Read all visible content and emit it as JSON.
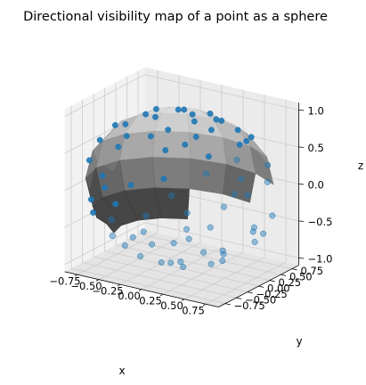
{
  "chart_data": {
    "type": "scatter",
    "subtype": "3d-surface-with-scatter",
    "title": "Directional visibility map of a point as a sphere",
    "xlabel": "x",
    "ylabel": "y",
    "zlabel": "z",
    "x_ticks": [
      "−0.75",
      "−0.50",
      "−0.25",
      "0.00",
      "0.25",
      "0.50",
      "0.75"
    ],
    "y_ticks": [
      "−0.75",
      "−0.50",
      "−0.25",
      "0.00",
      "0.25",
      "0.50",
      "0.75"
    ],
    "z_ticks": [
      "−1.0",
      "−0.5",
      "0.0",
      "0.5",
      "1.0"
    ],
    "xlim": [
      -0.9,
      0.9
    ],
    "ylim": [
      -0.9,
      0.9
    ],
    "zlim": [
      -1.1,
      1.1
    ],
    "grid": true,
    "surface": {
      "shape": "unit sphere",
      "lat_bands": 8,
      "lon_segments": 16,
      "shading": "grey"
    },
    "marker_color": "#1f77b4",
    "series": [
      {
        "points": [
          [
            0.1,
            0.05,
            0.99
          ],
          [
            0.2,
            -0.1,
            0.97
          ],
          [
            -0.05,
            0.15,
            0.98
          ],
          [
            0.3,
            0.2,
            0.93
          ],
          [
            -0.2,
            -0.2,
            0.95
          ],
          [
            0.15,
            0.35,
            0.92
          ],
          [
            0.4,
            -0.1,
            0.91
          ],
          [
            -0.35,
            0.1,
            0.93
          ],
          [
            0.05,
            -0.4,
            0.91
          ],
          [
            0.5,
            0.3,
            0.81
          ],
          [
            0.3,
            -0.5,
            0.81
          ],
          [
            -0.5,
            -0.3,
            0.81
          ],
          [
            -0.3,
            0.5,
            0.81
          ],
          [
            0.55,
            -0.45,
            0.7
          ],
          [
            0.65,
            0.2,
            0.73
          ],
          [
            -0.6,
            0.35,
            0.71
          ],
          [
            0.1,
            0.7,
            0.7
          ],
          [
            0.15,
            -0.65,
            0.74
          ],
          [
            -0.7,
            -0.15,
            0.7
          ],
          [
            0.75,
            -0.2,
            0.63
          ],
          [
            0.5,
            0.6,
            0.62
          ],
          [
            -0.4,
            -0.65,
            0.64
          ],
          [
            0.85,
            0.3,
            0.43
          ],
          [
            0.6,
            -0.6,
            0.53
          ],
          [
            0.85,
            -0.45,
            0.27
          ],
          [
            0.95,
            0.1,
            0.29
          ],
          [
            0.35,
            -0.9,
            0.26
          ],
          [
            -0.1,
            -0.95,
            0.3
          ],
          [
            -0.5,
            -0.82,
            0.28
          ],
          [
            0.7,
            -0.7,
            -0.14
          ],
          [
            0.95,
            -0.2,
            -0.23
          ],
          [
            0.5,
            -0.85,
            -0.17
          ],
          [
            0.1,
            -0.99,
            -0.05
          ],
          [
            -0.35,
            -0.9,
            -0.25
          ],
          [
            0.8,
            0.5,
            -0.33
          ],
          [
            0.9,
            0.1,
            -0.42
          ],
          [
            -0.75,
            -0.55,
            -0.37
          ],
          [
            0.35,
            -0.85,
            -0.4
          ],
          [
            -0.1,
            -0.9,
            -0.42
          ],
          [
            0.7,
            -0.4,
            -0.6
          ],
          [
            0.3,
            -0.6,
            -0.74
          ],
          [
            -0.3,
            -0.7,
            -0.65
          ],
          [
            0.7,
            0.3,
            -0.65
          ],
          [
            -0.6,
            -0.4,
            -0.69
          ],
          [
            0.5,
            -0.3,
            -0.81
          ],
          [
            0.2,
            -0.35,
            -0.92
          ],
          [
            -0.25,
            -0.45,
            -0.86
          ],
          [
            0.45,
            0.05,
            -0.89
          ],
          [
            -0.05,
            -0.15,
            -0.99
          ],
          [
            0.3,
            0.35,
            -0.89
          ],
          [
            -0.4,
            0.1,
            -0.91
          ],
          [
            0.1,
            0.3,
            -0.95
          ],
          [
            -0.15,
            0.45,
            -0.88
          ],
          [
            0.05,
            -0.55,
            -0.83
          ],
          [
            -0.55,
            0.2,
            -0.81
          ],
          [
            0.55,
            0.55,
            -0.63
          ],
          [
            -0.3,
            0.7,
            -0.65
          ],
          [
            -0.85,
            0.15,
            -0.5
          ],
          [
            0.05,
            0.85,
            -0.52
          ],
          [
            -0.9,
            -0.3,
            -0.31
          ],
          [
            -0.6,
            0.75,
            -0.28
          ],
          [
            0.3,
            0.9,
            -0.31
          ],
          [
            -0.95,
            0.1,
            -0.29
          ],
          [
            -0.85,
            0.4,
            0.34
          ],
          [
            -0.95,
            -0.25,
            0.19
          ],
          [
            -0.7,
            0.65,
            0.3
          ],
          [
            -0.3,
            0.9,
            0.32
          ],
          [
            0.2,
            0.92,
            0.34
          ],
          [
            -0.8,
            -0.3,
            0.52
          ],
          [
            0.85,
            -0.3,
            0.43
          ]
        ]
      }
    ]
  }
}
